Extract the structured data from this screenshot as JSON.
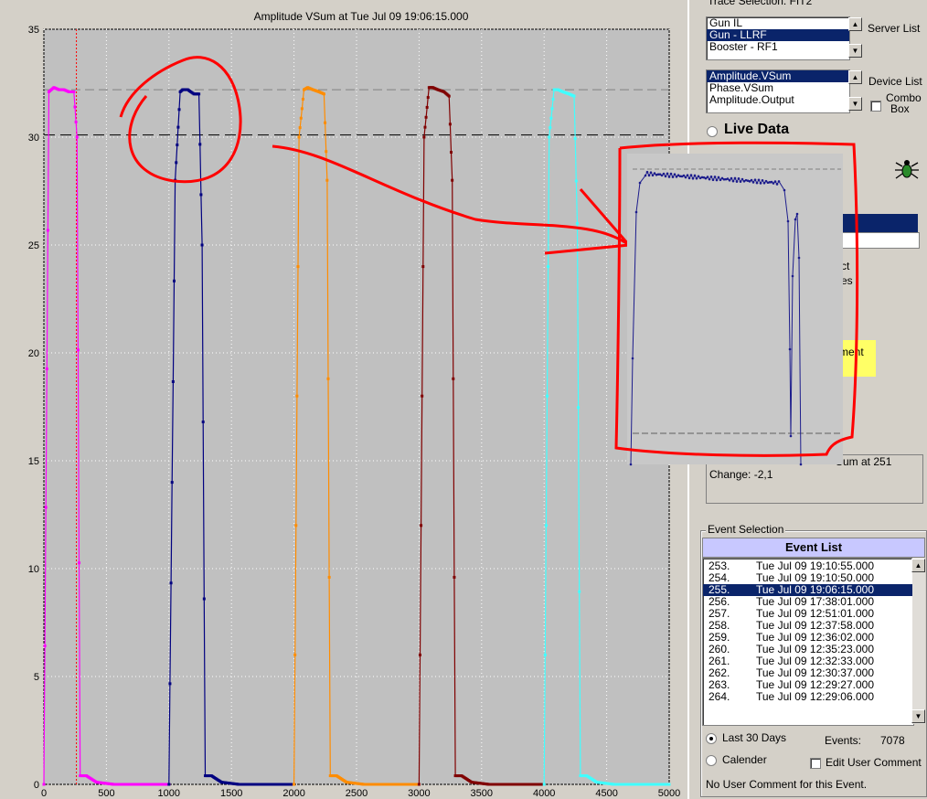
{
  "chart_data": {
    "type": "line",
    "title": "Amplitude VSum   at   Tue Jul 09 19:06:15.000",
    "xlim": [
      0,
      5000
    ],
    "ylim": [
      0,
      35
    ],
    "x_ticks": [
      "0",
      "500",
      "1000",
      "1500",
      "2000",
      "2500",
      "3000",
      "3500",
      "4000",
      "4500",
      "5000"
    ],
    "y_ticks": [
      "0",
      "5",
      "10",
      "15",
      "20",
      "25",
      "30",
      "35"
    ],
    "grid": true,
    "reference_lines_y": [
      32.2,
      30.1
    ],
    "cursor_x": 260,
    "series": [
      {
        "color": "#ff00ff",
        "x": [
          0,
          40,
          80,
          120,
          160,
          200,
          240,
          265,
          290,
          340,
          420,
          560,
          1000
        ],
        "y": [
          0,
          32.1,
          32.3,
          32.2,
          32.2,
          32.1,
          32.1,
          30,
          0.4,
          0.4,
          0.1,
          0,
          0
        ]
      },
      {
        "color": "#000080",
        "x": [
          1000,
          1050,
          1090,
          1110,
          1150,
          1200,
          1240,
          1265,
          1290,
          1340,
          1420,
          1560,
          2000
        ],
        "y": [
          0,
          28,
          32.1,
          32.2,
          32.2,
          32.0,
          32.0,
          25,
          0.4,
          0.4,
          0.1,
          0,
          0
        ]
      },
      {
        "color": "#ff8c00",
        "x": [
          2000,
          2040,
          2080,
          2110,
          2150,
          2200,
          2240,
          2265,
          2290,
          2340,
          2420,
          2560,
          3000
        ],
        "y": [
          0,
          30,
          32.2,
          32.3,
          32.2,
          32.1,
          32.0,
          28,
          0.4,
          0.4,
          0.1,
          0,
          0
        ]
      },
      {
        "color": "#800000",
        "x": [
          3000,
          3040,
          3080,
          3110,
          3150,
          3200,
          3240,
          3265,
          3290,
          3340,
          3420,
          3560,
          4000
        ],
        "y": [
          0,
          30,
          32.3,
          32.3,
          32.2,
          32.1,
          31.9,
          28,
          0.4,
          0.4,
          0.1,
          0,
          0
        ]
      },
      {
        "color": "#40ffff",
        "x": [
          4000,
          4040,
          4080,
          4110,
          4150,
          4200,
          4240,
          4265,
          4290,
          4340,
          4420,
          4560,
          5000
        ],
        "y": [
          0,
          30,
          32.2,
          32.2,
          32.1,
          32.0,
          31.9,
          26,
          0.4,
          0.4,
          0.1,
          0,
          0
        ]
      }
    ]
  },
  "panel": {
    "trace_selection_label": "Trace Selection: FIT2",
    "server_list_label": "Server List",
    "server_items": [
      "Gun IL",
      "Gun - LLRF",
      "Booster - RF1"
    ],
    "server_selected": 1,
    "device_list_label": "Device List",
    "device_items": [
      "Amplitude.VSum",
      "Phase.VSum",
      "Amplitude.Output"
    ],
    "device_selected": 0,
    "combo_box_label_1": "Combo",
    "combo_box_label_2": "Box",
    "live_data_label": "Live Data",
    "partial_text_1": "ct",
    "partial_text_2": "es",
    "partial_text_3": "ment",
    "partial_text_4": "Sum at 251",
    "change_text": "Change: -2,1",
    "event_selection_label": "Event Selection",
    "event_list_header": "Event List",
    "events": [
      {
        "num": "253.",
        "date": "Tue Jul 09 19:10:55.000"
      },
      {
        "num": "254.",
        "date": "Tue Jul 09 19:10:50.000"
      },
      {
        "num": "255.",
        "date": "Tue Jul 09 19:06:15.000"
      },
      {
        "num": "256.",
        "date": "Tue Jul 09 17:38:01.000"
      },
      {
        "num": "257.",
        "date": "Tue Jul 09 12:51:01.000"
      },
      {
        "num": "258.",
        "date": "Tue Jul 09 12:37:58.000"
      },
      {
        "num": "259.",
        "date": "Tue Jul 09 12:36:02.000"
      },
      {
        "num": "260.",
        "date": "Tue Jul 09 12:35:23.000"
      },
      {
        "num": "261.",
        "date": "Tue Jul 09 12:32:33.000"
      },
      {
        "num": "262.",
        "date": "Tue Jul 09 12:30:37.000"
      },
      {
        "num": "263.",
        "date": "Tue Jul 09 12:29:27.000"
      },
      {
        "num": "264.",
        "date": "Tue Jul 09 12:29:06.000"
      }
    ],
    "event_selected": 2,
    "last_30_days_label": "Last 30 Days",
    "calender_label": "Calender",
    "events_label": "Events:",
    "events_count": "7078",
    "edit_user_comment_label": "Edit User Comment",
    "no_comment_text": "No User Comment for this Event."
  },
  "colors": {
    "annotation": "#ff0000",
    "plot_bg": "#c0c0c0",
    "selection": "#0a246a",
    "event_header": "#c8c8ff"
  }
}
